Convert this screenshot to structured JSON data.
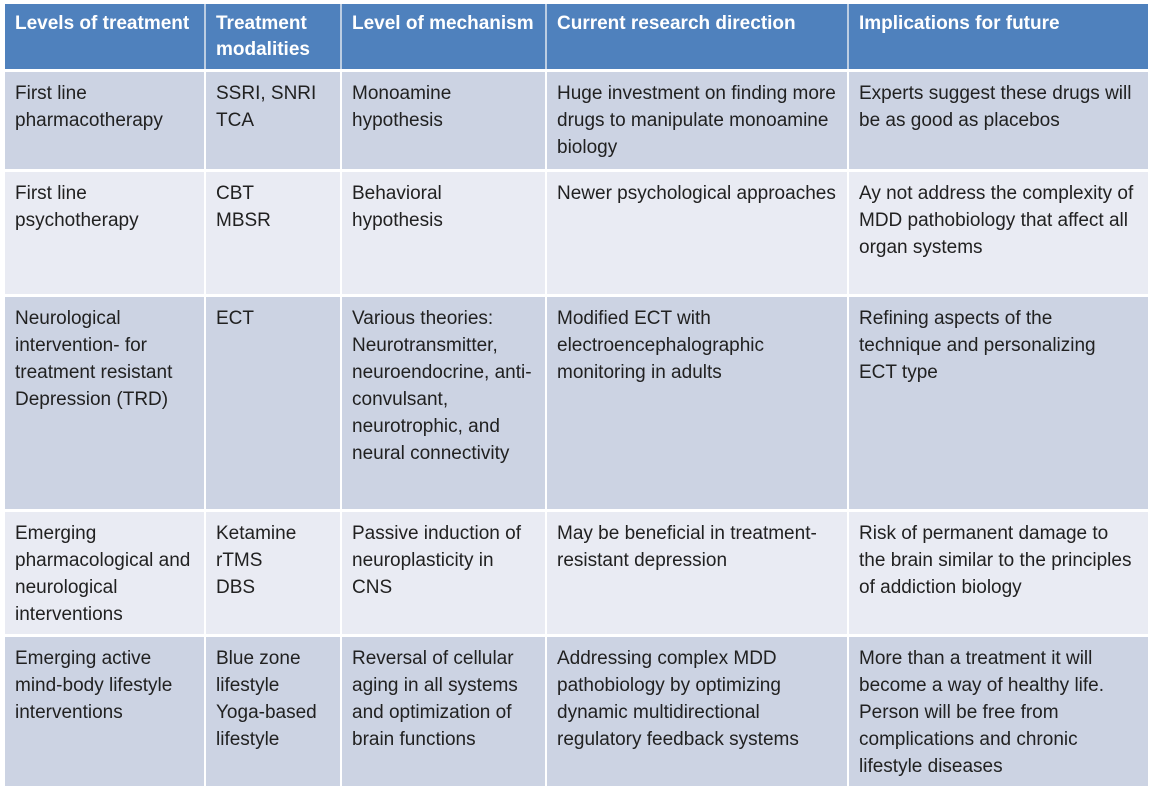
{
  "colors": {
    "header_bg": "#4f81bd",
    "header_text": "#ffffff",
    "header_divider": "#bccde2",
    "row_dark_bg": "#ccd3e3",
    "row_light_bg": "#e9ebf3",
    "body_text": "#212121"
  },
  "table": {
    "headers": [
      "Levels of treatment",
      "Treatment modalities",
      "Level of mechanism",
      "Current research direction",
      "Implications for future"
    ],
    "rows": [
      [
        "First line pharmacotherapy",
        "SSRI, SNRI\nTCA",
        "Monoamine hypothesis",
        "Huge investment on finding more drugs to manipulate monoamine biology",
        "Experts suggest these drugs will be as good as placebos"
      ],
      [
        "First line psychotherapy",
        "CBT\nMBSR",
        "Behavioral hypothesis",
        "Newer psychological approaches",
        "Ay not address the complexity of MDD pathobiology that affect all organ systems"
      ],
      [
        "Neurological intervention- for treatment resistant Depression (TRD)",
        "ECT",
        "Various theories: Neurotransmitter, neuroendocrine, anti-convulsant, neurotrophic, and neural connectivity",
        "Modified ECT with electroencephalographic monitoring in adults",
        "Refining aspects of the technique and personalizing ECT type"
      ],
      [
        "Emerging pharmacological and neurological interventions",
        "Ketamine\nrTMS\nDBS",
        "Passive induction of neuroplasticity in CNS",
        "May be beneficial in treatment-resistant depression",
        "Risk of permanent damage to the brain similar to the principles of addiction biology"
      ],
      [
        "Emerging active mind-body lifestyle interventions",
        "Blue zone lifestyle\nYoga-based lifestyle",
        "Reversal of cellular aging in all systems and optimization of brain functions",
        "Addressing complex MDD pathobiology by optimizing dynamic multidirectional regulatory feedback systems",
        "More than a treatment it will become a way of healthy life. Person will be free from complications and chronic lifestyle diseases"
      ]
    ]
  }
}
